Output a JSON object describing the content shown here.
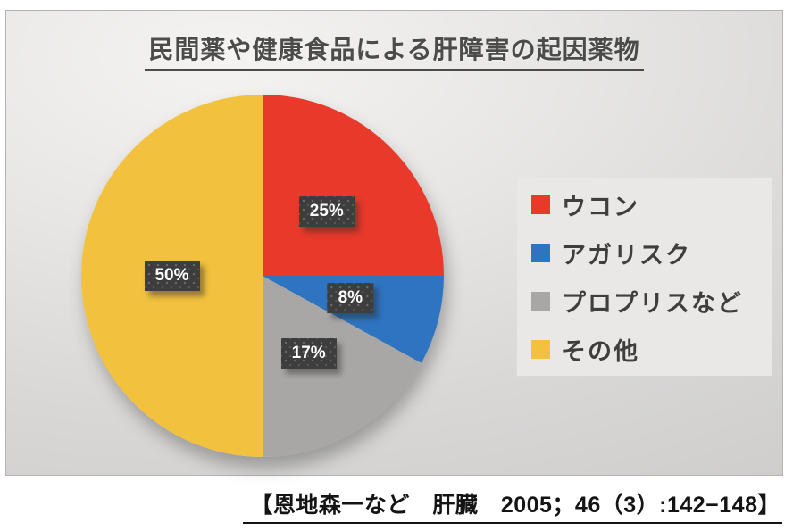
{
  "title": "民間薬や健康食品による肝障害の起因薬物",
  "citation": "【恩地森一など　肝臓　2005；46（3）:142−148】",
  "colors": {
    "title_text": "#4b4b4a",
    "legend_text": "#3e3e3d",
    "legend_background": "#e9e8e7",
    "data_label_box": "#3d3d3d",
    "data_label_text": "#ffffff",
    "slice_red": "#e8392b",
    "slice_blue": "#2e74c0",
    "slice_gray": "#a8a7a6",
    "slice_yellow": "#f2c23e"
  },
  "chart_data": {
    "type": "pie",
    "title": "民間薬や健康食品による肝障害の起因薬物",
    "start_angle_deg": 0,
    "direction": "clockwise",
    "legend_position": "right",
    "data_labels": "percent",
    "label_radius_fraction": 0.5,
    "slices": [
      {
        "label": "ウコン",
        "value": 25,
        "percent_label": "25%",
        "color": "#e8392b"
      },
      {
        "label": "アガリスク",
        "value": 8,
        "percent_label": "8%",
        "color": "#2e74c0"
      },
      {
        "label": "プロプリスなど",
        "value": 17,
        "percent_label": "17%",
        "color": "#a8a7a6"
      },
      {
        "label": "その他",
        "value": 50,
        "percent_label": "50%",
        "color": "#f2c23e"
      }
    ]
  }
}
